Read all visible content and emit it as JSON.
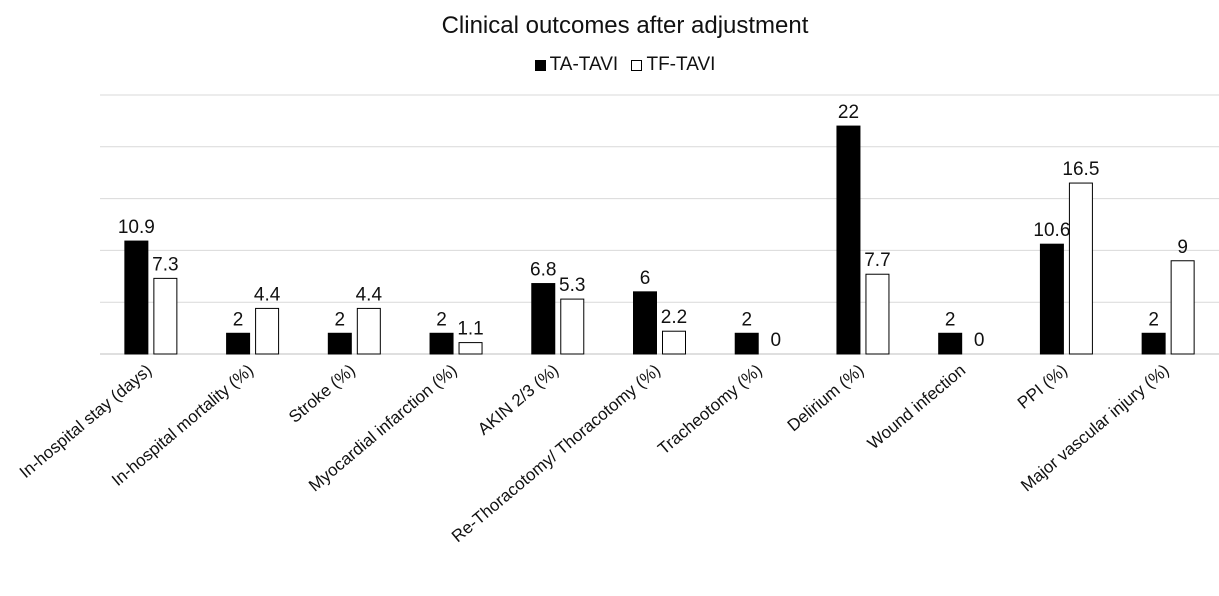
{
  "chart_data": {
    "type": "bar",
    "title": "Clinical outcomes after adjustment",
    "xlabel": "",
    "ylabel": "",
    "ylim": [
      0,
      25
    ],
    "grid": true,
    "legend_position": "top",
    "categories": [
      "In-hospital stay (days)",
      "In-hospital mortality (%)",
      "Stroke (%)",
      "Myocardial infarction (%)",
      "AKIN 2/3 (%)",
      "Re-Thoracotomy/ Thoracotomy (%)",
      "Tracheotomy (%)",
      "Delirium (%)",
      "Wound infection",
      "PPI (%)",
      "Major vascular injury (%)"
    ],
    "series": [
      {
        "name": "TA-TAVI",
        "color": "#000000",
        "values": [
          10.9,
          2,
          2,
          2,
          6.8,
          6,
          2,
          22,
          2,
          10.6,
          2
        ]
      },
      {
        "name": "TF-TAVI",
        "color": "#ffffff",
        "values": [
          7.3,
          4.4,
          4.4,
          1.1,
          5.3,
          2.2,
          0,
          7.7,
          0,
          16.5,
          9
        ]
      }
    ]
  }
}
